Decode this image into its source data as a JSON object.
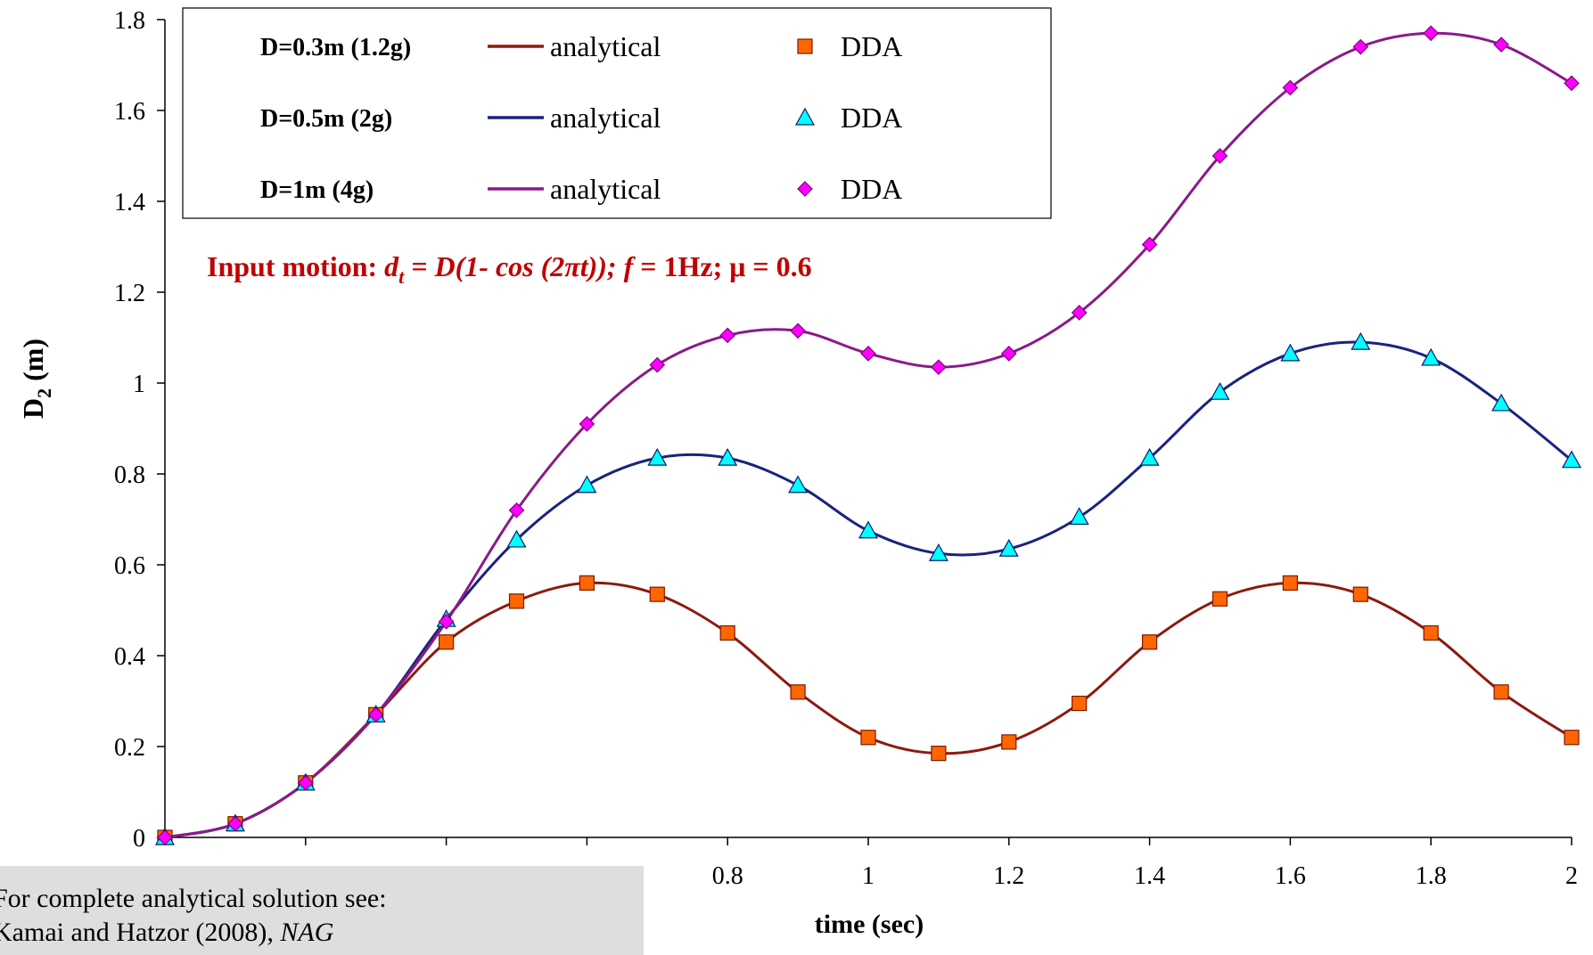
{
  "chart_data": {
    "type": "line",
    "xlabel": "time (sec)",
    "ylabel_main": "D",
    "ylabel_sub": "2",
    "ylabel_unit": " (m)",
    "xlim": [
      0,
      2
    ],
    "ylim": [
      0,
      1.8
    ],
    "x_ticks": [
      0,
      0.2,
      0.4,
      0.6,
      0.8,
      1,
      1.2,
      1.4,
      1.6,
      1.8,
      2
    ],
    "x_tick_labels": [
      "",
      "",
      "",
      "",
      "0.8",
      "1",
      "1.2",
      "1.4",
      "1.6",
      "1.8",
      "2"
    ],
    "y_ticks": [
      0,
      0.2,
      0.4,
      0.6,
      0.8,
      1,
      1.2,
      1.4,
      1.6,
      1.8
    ],
    "y_tick_labels": [
      "0",
      "0.2",
      "0.4",
      "0.6",
      "0.8",
      "1",
      "1.2",
      "1.4",
      "1.6",
      "1.8"
    ],
    "grid": false,
    "legend_position": "top-left",
    "annotation": {
      "prefix": "Input motion: ",
      "var": "d",
      "sub": "t",
      "formula": " = D(1- cos (2πt)); ",
      "f_var": "f",
      "rest": " = 1Hz; μ = 0.6",
      "color": "#c00000"
    },
    "x": [
      0,
      0.1,
      0.2,
      0.3,
      0.4,
      0.5,
      0.6,
      0.7,
      0.8,
      0.9,
      1.0,
      1.1,
      1.2,
      1.3,
      1.4,
      1.5,
      1.6,
      1.7,
      1.8,
      1.9,
      2.0
    ],
    "series": [
      {
        "label": "D=0.3m (1.2g)",
        "line_name": "analytical",
        "marker_name": "DDA",
        "marker": "square",
        "line_color": "#8b1a10",
        "marker_fill": "#ff6600",
        "marker_edge": "#7a1a00",
        "values": [
          0,
          0.03,
          0.12,
          0.27,
          0.43,
          0.52,
          0.56,
          0.535,
          0.45,
          0.32,
          0.22,
          0.185,
          0.21,
          0.295,
          0.43,
          0.525,
          0.56,
          0.535,
          0.45,
          0.32,
          0.22
        ]
      },
      {
        "label": "D=0.5m (2g)",
        "line_name": "analytical",
        "marker_name": "DDA",
        "marker": "triangle",
        "line_color": "#1a237e",
        "marker_fill": "#00ffff",
        "marker_edge": "#0d1a70",
        "values": [
          0,
          0.03,
          0.12,
          0.27,
          0.48,
          0.655,
          0.775,
          0.835,
          0.835,
          0.775,
          0.675,
          0.625,
          0.635,
          0.705,
          0.835,
          0.98,
          1.065,
          1.09,
          1.055,
          0.955,
          0.83
        ]
      },
      {
        "label": "D=1m (4g)",
        "line_name": "analytical",
        "marker_name": "DDA",
        "marker": "diamond",
        "line_color": "#8a1a8a",
        "marker_fill": "#ff00ff",
        "marker_edge": "#800080",
        "values": [
          0,
          0.03,
          0.12,
          0.27,
          0.475,
          0.72,
          0.91,
          1.04,
          1.105,
          1.115,
          1.065,
          1.035,
          1.065,
          1.155,
          1.305,
          1.5,
          1.65,
          1.74,
          1.77,
          1.745,
          1.66
        ]
      }
    ]
  },
  "note": {
    "line1": "For complete analytical solution see:",
    "line2_prefix": "Kamai and Hatzor (2008), ",
    "line2_italic": "NAG"
  }
}
